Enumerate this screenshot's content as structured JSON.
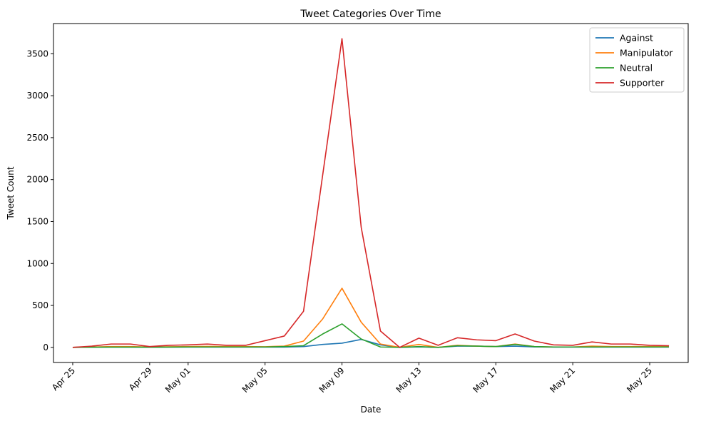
{
  "chart_data": {
    "type": "line",
    "title": "Tweet Categories Over Time",
    "xlabel": "Date",
    "ylabel": "Tweet Count",
    "x_tick_labels": [
      "Apr 25",
      "Apr 29",
      "May 01",
      "May 05",
      "May 09",
      "May 13",
      "May 17",
      "May 21",
      "May 25"
    ],
    "x_tick_dates": [
      "2023-04-25",
      "2023-04-29",
      "2023-05-01",
      "2023-05-05",
      "2023-05-09",
      "2023-05-13",
      "2023-05-17",
      "2023-05-21",
      "2023-05-25"
    ],
    "y_ticks": [
      0,
      500,
      1000,
      1500,
      2000,
      2500,
      3000,
      3500
    ],
    "xlim": [
      "2023-04-24",
      "2023-05-27"
    ],
    "ylim": [
      -180,
      3860
    ],
    "legend_position": "top-right",
    "grid": false,
    "x": [
      "2023-04-25",
      "2023-04-26",
      "2023-04-27",
      "2023-04-28",
      "2023-04-29",
      "2023-04-30",
      "2023-05-01",
      "2023-05-02",
      "2023-05-03",
      "2023-05-04",
      "2023-05-05",
      "2023-05-06",
      "2023-05-07",
      "2023-05-08",
      "2023-05-09",
      "2023-05-10",
      "2023-05-11",
      "2023-05-12",
      "2023-05-13",
      "2023-05-14",
      "2023-05-15",
      "2023-05-16",
      "2023-05-17",
      "2023-05-18",
      "2023-05-19",
      "2023-05-20",
      "2023-05-21",
      "2023-05-22",
      "2023-05-23",
      "2023-05-24",
      "2023-05-25",
      "2023-05-26"
    ],
    "series": [
      {
        "name": "Against",
        "color": "#1f77b4",
        "values": [
          0,
          2,
          3,
          3,
          2,
          3,
          3,
          3,
          3,
          3,
          3,
          3,
          10,
          35,
          50,
          95,
          30,
          0,
          5,
          0,
          15,
          15,
          10,
          15,
          5,
          3,
          3,
          3,
          3,
          3,
          3,
          3
        ]
      },
      {
        "name": "Manipulator",
        "color": "#ff7f0e",
        "values": [
          0,
          5,
          10,
          10,
          5,
          8,
          10,
          12,
          10,
          10,
          8,
          15,
          75,
          340,
          705,
          300,
          40,
          0,
          35,
          0,
          25,
          15,
          10,
          40,
          10,
          5,
          5,
          15,
          10,
          10,
          10,
          10
        ]
      },
      {
        "name": "Neutral",
        "color": "#2ca02c",
        "values": [
          0,
          2,
          3,
          3,
          2,
          3,
          5,
          5,
          5,
          5,
          5,
          10,
          20,
          160,
          280,
          100,
          5,
          0,
          10,
          0,
          20,
          15,
          10,
          35,
          10,
          5,
          5,
          5,
          5,
          5,
          5,
          5
        ]
      },
      {
        "name": "Supporter",
        "color": "#d62728",
        "values": [
          0,
          15,
          40,
          40,
          10,
          25,
          30,
          40,
          25,
          25,
          80,
          135,
          430,
          2060,
          3680,
          1430,
          195,
          0,
          110,
          25,
          115,
          90,
          80,
          160,
          75,
          30,
          25,
          65,
          40,
          40,
          25,
          20
        ]
      }
    ]
  }
}
